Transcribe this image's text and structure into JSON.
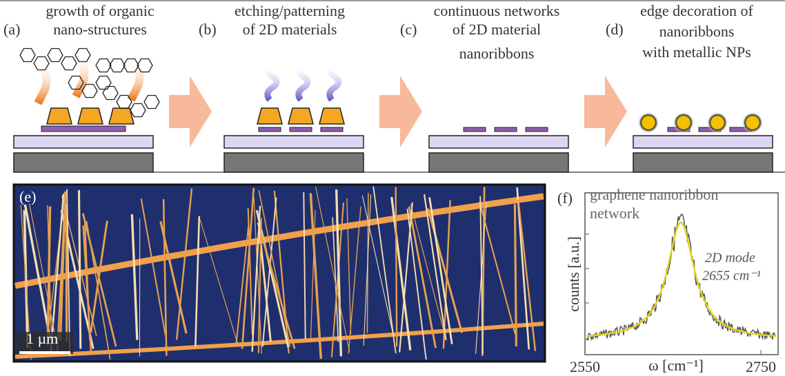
{
  "panels": [
    {
      "label": "(a)",
      "caption": [
        "growth of organic",
        "nano-structures"
      ]
    },
    {
      "label": "(b)",
      "caption": [
        "etching/patterning",
        "of 2D materials"
      ]
    },
    {
      "label": "(c)",
      "caption": [
        "continuous networks",
        "of 2D material",
        "nanoribbons"
      ]
    },
    {
      "label": "(d)",
      "caption": [
        "edge decoration of",
        "nanoribbons",
        "with metallic NPs"
      ]
    }
  ],
  "afm": {
    "label": "(e)",
    "scale_bar": "1 µm"
  },
  "spectrum": {
    "label": "(f)",
    "title": [
      "graphene nanoribbon",
      "network"
    ],
    "annotation": [
      "2D mode",
      "2655 cm⁻¹"
    ],
    "y_label": "counts [a.u.]",
    "x_label": "ω [cm⁻¹]",
    "x_ticks": [
      2550,
      2750
    ]
  }
}
